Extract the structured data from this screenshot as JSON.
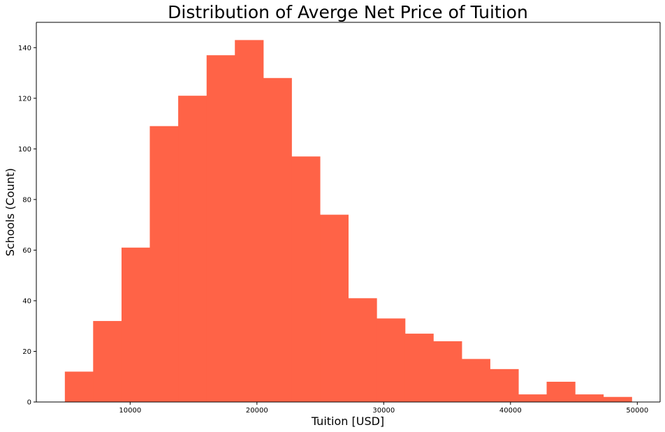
{
  "chart_data": {
    "type": "bar",
    "title": "Distribution of Averge Net Price of Tuition",
    "xlabel": "Tuition [USD]",
    "ylabel": "Schools (Count)",
    "bin_edges": [
      4850,
      7080,
      9320,
      11550,
      13790,
      16030,
      18260,
      20500,
      22730,
      24970,
      27200,
      29440,
      31680,
      33910,
      36150,
      38380,
      40620,
      42850,
      45090,
      47320,
      49560
    ],
    "values": [
      12,
      32,
      61,
      109,
      121,
      137,
      143,
      128,
      97,
      74,
      41,
      33,
      27,
      24,
      17,
      13,
      3,
      8,
      3,
      2
    ],
    "xlim": [
      2600,
      51800
    ],
    "ylim": [
      0,
      150
    ],
    "xticks": [
      10000,
      20000,
      30000,
      40000,
      50000
    ],
    "xtick_labels": [
      "10000",
      "20000",
      "30000",
      "40000",
      "50000"
    ],
    "yticks": [
      0,
      20,
      40,
      60,
      80,
      100,
      120,
      140
    ],
    "ytick_labels": [
      "0",
      "20",
      "40",
      "60",
      "80",
      "100",
      "120",
      "140"
    ],
    "bar_color": "#FF6347",
    "grid": false,
    "legend": "none"
  }
}
